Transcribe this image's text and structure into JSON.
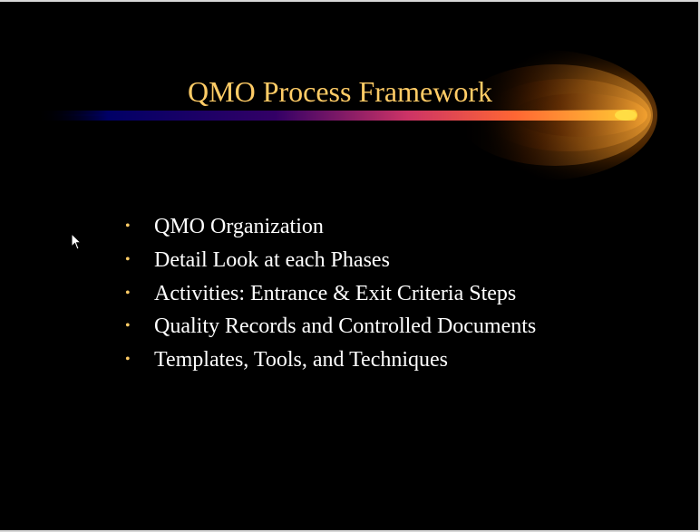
{
  "slide": {
    "title": "QMO Process Framework",
    "bullet_glyph": "•",
    "bullets": [
      "QMO Organization",
      "Detail Look at each Phases",
      "Activities: Entrance & Exit Criteria Steps",
      "Quality Records and Controlled Documents",
      "Templates, Tools, and Techniques"
    ]
  },
  "colors": {
    "background": "#000000",
    "title": "#ffcc66",
    "text": "#ffffff",
    "bullet": "#ffcc66",
    "swoosh_start": "#000066",
    "swoosh_mid": "#cc3366",
    "swoosh_end": "#ffcc33"
  },
  "icons": {
    "decoration": "swoosh-graphic",
    "pointer": "mouse-cursor-icon"
  }
}
